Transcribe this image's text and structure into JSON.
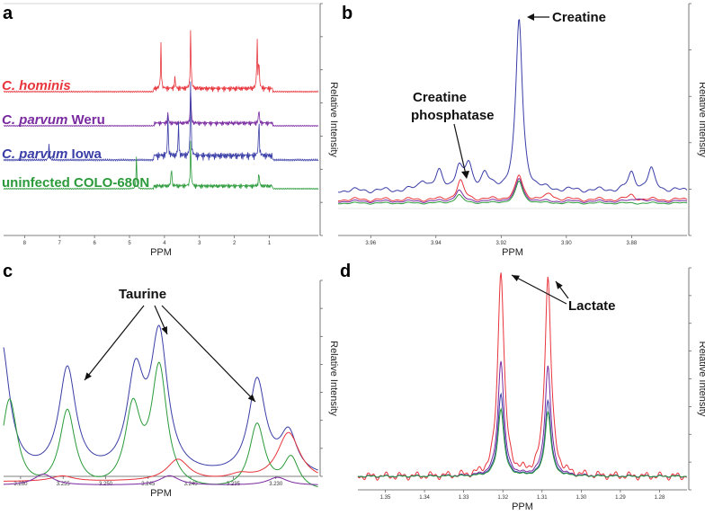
{
  "colors": {
    "red": "#e8353c",
    "purple": "#7a2aa0",
    "blue": "#3a3ea6",
    "green": "#2a9a3a"
  },
  "chart_data": [
    {
      "type": "line",
      "panel_label": "a",
      "xlabel": "PPM",
      "ylabel": "Relative Intensity",
      "xlim": [
        8.6,
        -0.4
      ],
      "x_ticks": [
        "8",
        "7",
        "6",
        "5",
        "4",
        "3",
        "2",
        "1"
      ],
      "series": [
        {
          "name": "C. hominis",
          "name_italic": "C. hominis",
          "name_plain": "",
          "color_key": "red",
          "peaks": [
            [
              4.1,
              0.7
            ],
            [
              3.25,
              1.0
            ],
            [
              1.35,
              0.8
            ],
            [
              1.3,
              0.5
            ],
            [
              3.7,
              0.2
            ]
          ]
        },
        {
          "name": "C. parvum Weru",
          "name_italic": "C. parvum",
          "name_plain": " Weru",
          "color_key": "purple",
          "peaks": [
            [
              3.25,
              0.7
            ],
            [
              1.3,
              0.3
            ],
            [
              3.9,
              0.2
            ]
          ]
        },
        {
          "name": "C. parvum Iowa",
          "name_italic": "C. parvum",
          "name_plain": " Iowa",
          "color_key": "blue",
          "peaks": [
            [
              3.25,
              1.0
            ],
            [
              3.9,
              0.5
            ],
            [
              3.6,
              0.4
            ],
            [
              1.3,
              0.5
            ],
            [
              7.3,
              0.2
            ]
          ]
        },
        {
          "name": "uninfected COLO-680N",
          "name_italic": "",
          "name_plain": "uninfected COLO-680N",
          "color_key": "green",
          "peaks": [
            [
              4.8,
              0.6
            ],
            [
              3.25,
              0.9
            ],
            [
              3.8,
              0.4
            ],
            [
              1.3,
              0.3
            ]
          ]
        }
      ]
    },
    {
      "type": "line",
      "panel_label": "b",
      "xlabel": "PPM",
      "ylabel": "Relative Intensity",
      "xlim": [
        3.97,
        3.863
      ],
      "x_ticks": [
        "3.96",
        "3.94",
        "3.92",
        "3.90",
        "3.88"
      ],
      "x_tick_values": [
        3.96,
        3.94,
        3.92,
        3.9,
        3.88
      ],
      "annotations": [
        {
          "text": "Creatine"
        },
        {
          "text": "Creatine"
        },
        {
          "text": "phosphatase"
        }
      ]
    },
    {
      "type": "line",
      "panel_label": "c",
      "xlabel": "PPM",
      "ylabel": "Relative Intensity",
      "xlim": [
        3.262,
        3.225
      ],
      "x_ticks": [
        "3.260",
        "3.255",
        "3.250",
        "3.245",
        "3.240",
        "3.235",
        "3.230"
      ],
      "x_tick_values": [
        3.26,
        3.255,
        3.25,
        3.245,
        3.24,
        3.235,
        3.23
      ],
      "annotations": [
        {
          "text": "Taurine"
        }
      ]
    },
    {
      "type": "line",
      "panel_label": "d",
      "xlabel": "PPM",
      "ylabel": "Relative Intensity",
      "xlim": [
        1.357,
        1.273
      ],
      "x_ticks": [
        "1.35",
        "1.34",
        "1.33",
        "1.32",
        "1.31",
        "1.30",
        "1.29",
        "1.28"
      ],
      "x_tick_values": [
        1.35,
        1.34,
        1.33,
        1.32,
        1.31,
        1.3,
        1.29,
        1.28
      ],
      "annotations": [
        {
          "text": "Lactate"
        }
      ]
    }
  ]
}
